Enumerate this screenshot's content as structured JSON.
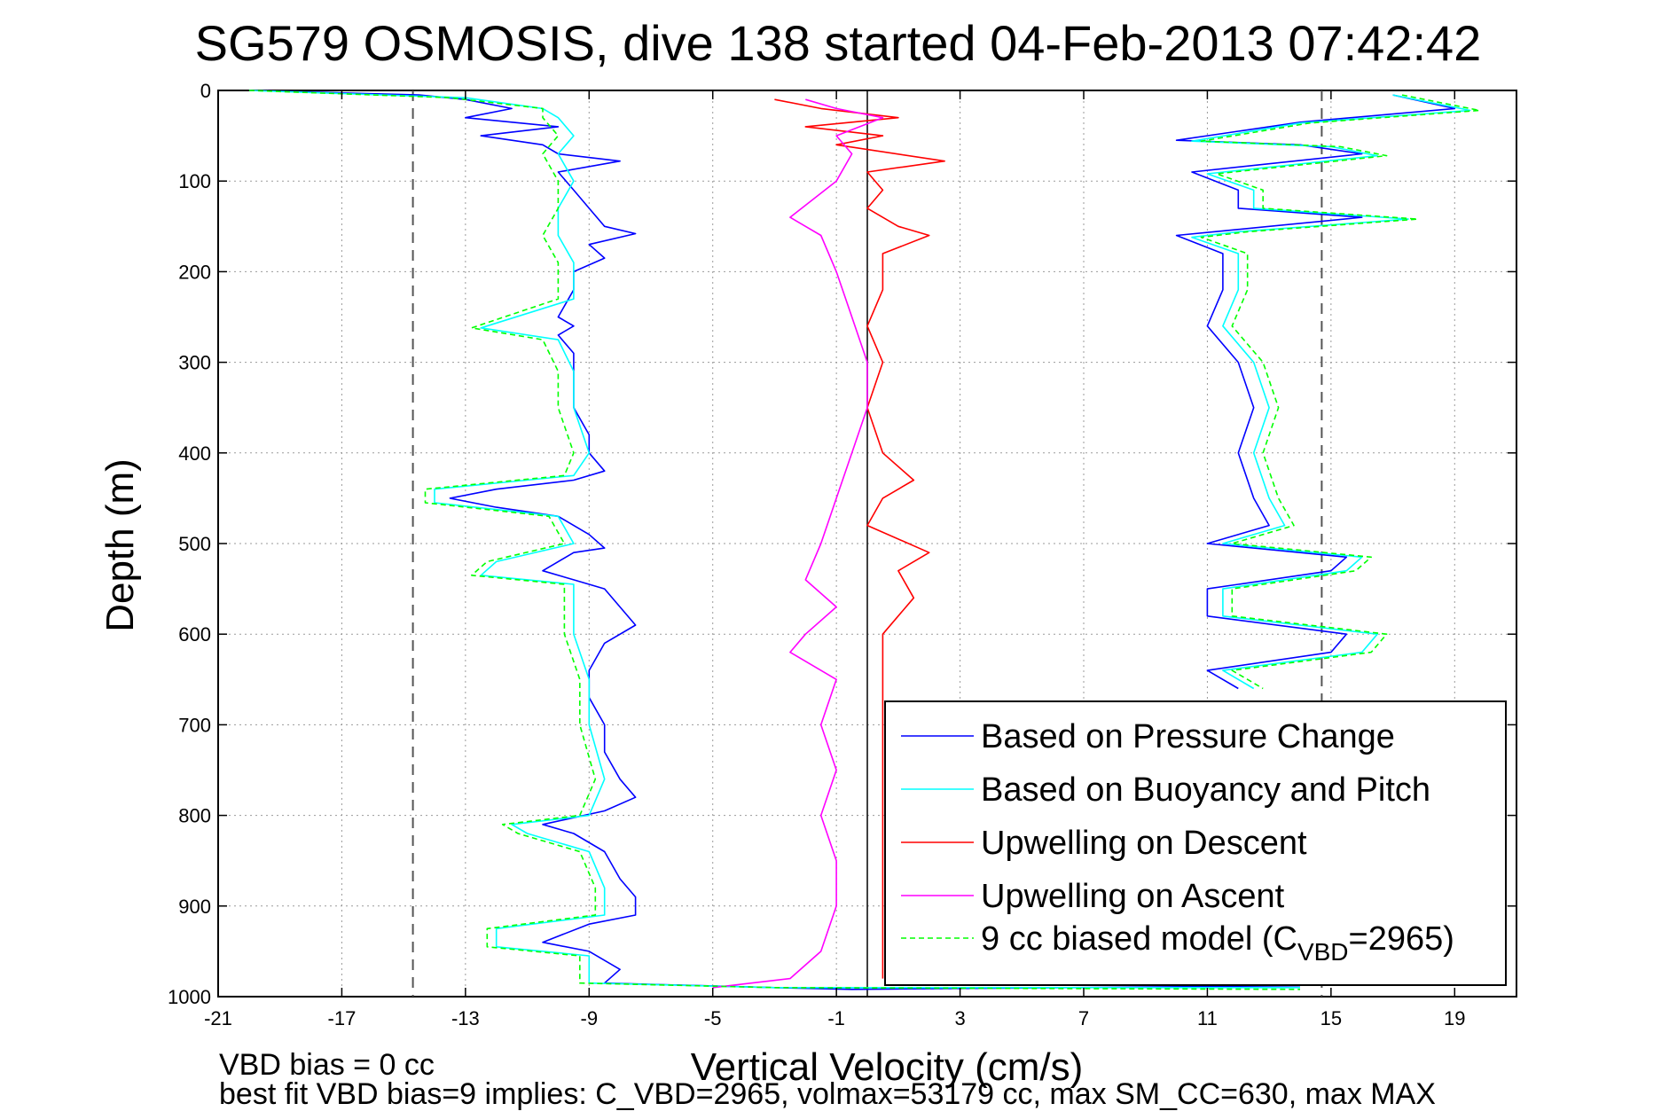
{
  "chart_data": {
    "type": "line",
    "title": "SG579 OSMOSIS, dive 138 started 04-Feb-2013 07:42:42",
    "xlabel": "Vertical Velocity (cm/s)",
    "ylabel": "Depth (m)",
    "xlim": [
      -21,
      21
    ],
    "ylim": [
      1000,
      0
    ],
    "y_reversed": true,
    "xticks": [
      -21,
      -17,
      -13,
      -9,
      -5,
      -1,
      3,
      7,
      11,
      15,
      19
    ],
    "yticks": [
      0,
      100,
      200,
      300,
      400,
      500,
      600,
      700,
      800,
      900,
      1000
    ],
    "grid": true,
    "legend_position": "bottom-right",
    "reference_lines": {
      "solid_vertical_x": 0,
      "dashed_vertical_x": [
        -14.7,
        14.7
      ]
    },
    "series": [
      {
        "name": "Based on Pressure Change",
        "color": "#0000ff",
        "style": "solid",
        "points": [
          [
            -20,
            0
          ],
          [
            -14.5,
            5
          ],
          [
            -13,
            10
          ],
          [
            -11.5,
            20
          ],
          [
            -13,
            30
          ],
          [
            -10,
            40
          ],
          [
            -12.5,
            50
          ],
          [
            -10.5,
            60
          ],
          [
            -10,
            70
          ],
          [
            -8,
            78
          ],
          [
            -10,
            90
          ],
          [
            -9.5,
            110
          ],
          [
            -9,
            130
          ],
          [
            -8.5,
            150
          ],
          [
            -7.5,
            158
          ],
          [
            -9,
            170
          ],
          [
            -8.5,
            185
          ],
          [
            -9.5,
            200
          ],
          [
            -9.5,
            220
          ],
          [
            -10,
            250
          ],
          [
            -9.5,
            260
          ],
          [
            -10,
            270
          ],
          [
            -9.5,
            290
          ],
          [
            -9.5,
            320
          ],
          [
            -9.5,
            350
          ],
          [
            -9,
            380
          ],
          [
            -9,
            400
          ],
          [
            -8.5,
            420
          ],
          [
            -9.5,
            430
          ],
          [
            -12,
            440
          ],
          [
            -13.5,
            450
          ],
          [
            -12,
            460
          ],
          [
            -10,
            470
          ],
          [
            -9,
            490
          ],
          [
            -8.5,
            505
          ],
          [
            -9.5,
            510
          ],
          [
            -10.5,
            530
          ],
          [
            -9.5,
            540
          ],
          [
            -8.5,
            550
          ],
          [
            -8,
            570
          ],
          [
            -7.5,
            590
          ],
          [
            -8.5,
            610
          ],
          [
            -9,
            640
          ],
          [
            -9,
            670
          ],
          [
            -8.5,
            700
          ],
          [
            -8.5,
            730
          ],
          [
            -8,
            760
          ],
          [
            -7.5,
            780
          ],
          [
            -8.5,
            795
          ],
          [
            -10.5,
            810
          ],
          [
            -9.5,
            820
          ],
          [
            -8.5,
            840
          ],
          [
            -8,
            870
          ],
          [
            -7.5,
            890
          ],
          [
            -7.5,
            910
          ],
          [
            -9,
            920
          ],
          [
            -10.5,
            940
          ],
          [
            -9,
            950
          ],
          [
            -8,
            970
          ],
          [
            -8.5,
            985
          ],
          [
            -3,
            990
          ],
          [
            -0.5,
            992
          ],
          [
            14,
            988
          ]
        ]
      },
      {
        "name": "Based on Buoyancy and Pitch",
        "color": "#00ffff",
        "style": "solid",
        "points": [
          [
            -20,
            0
          ],
          [
            -13,
            8
          ],
          [
            -10.5,
            20
          ],
          [
            -10,
            30
          ],
          [
            -9.5,
            50
          ],
          [
            -10,
            70
          ],
          [
            -9.5,
            100
          ],
          [
            -10,
            130
          ],
          [
            -10,
            160
          ],
          [
            -9.5,
            190
          ],
          [
            -9.5,
            230
          ],
          [
            -12.5,
            262
          ],
          [
            -10,
            275
          ],
          [
            -9.5,
            310
          ],
          [
            -9.5,
            350
          ],
          [
            -9,
            400
          ],
          [
            -9.5,
            425
          ],
          [
            -14,
            440
          ],
          [
            -14,
            455
          ],
          [
            -10,
            470
          ],
          [
            -9.5,
            500
          ],
          [
            -12,
            520
          ],
          [
            -12.5,
            535
          ],
          [
            -9.5,
            545
          ],
          [
            -9.5,
            600
          ],
          [
            -9,
            650
          ],
          [
            -9,
            700
          ],
          [
            -8.5,
            760
          ],
          [
            -9,
            800
          ],
          [
            -11.5,
            810
          ],
          [
            -11,
            820
          ],
          [
            -9,
            840
          ],
          [
            -8.5,
            880
          ],
          [
            -8.5,
            910
          ],
          [
            -12,
            925
          ],
          [
            -12,
            945
          ],
          [
            -9,
            955
          ],
          [
            -9,
            985
          ],
          [
            -3,
            990
          ],
          [
            14,
            990
          ]
        ]
      },
      {
        "name": "Upwelling on Descent",
        "color": "#ff0000",
        "style": "solid",
        "points": [
          [
            -3,
            10
          ],
          [
            -1.5,
            20
          ],
          [
            1,
            30
          ],
          [
            -2,
            40
          ],
          [
            0.5,
            50
          ],
          [
            -1,
            60
          ],
          [
            2.5,
            78
          ],
          [
            0,
            90
          ],
          [
            0.5,
            110
          ],
          [
            0,
            130
          ],
          [
            1,
            150
          ],
          [
            2,
            160
          ],
          [
            0.5,
            180
          ],
          [
            0.5,
            220
          ],
          [
            0,
            260
          ],
          [
            0.5,
            300
          ],
          [
            0,
            350
          ],
          [
            0.5,
            400
          ],
          [
            1.5,
            430
          ],
          [
            0.5,
            450
          ],
          [
            0,
            480
          ],
          [
            2,
            510
          ],
          [
            1,
            530
          ],
          [
            1.5,
            560
          ],
          [
            0.5,
            600
          ],
          [
            0.5,
            650
          ],
          [
            0.5,
            700
          ],
          [
            0.5,
            750
          ],
          [
            0.5,
            800
          ],
          [
            0.5,
            850
          ],
          [
            0.5,
            900
          ],
          [
            0.5,
            950
          ],
          [
            0.5,
            980
          ]
        ]
      },
      {
        "name": "Upwelling on Ascent",
        "color": "#ff00ff",
        "style": "solid",
        "points": [
          [
            -2,
            10
          ],
          [
            -1,
            20
          ],
          [
            0.5,
            30
          ],
          [
            -1,
            50
          ],
          [
            -0.5,
            70
          ],
          [
            -1,
            100
          ],
          [
            -2.5,
            140
          ],
          [
            -1.5,
            160
          ],
          [
            -1,
            200
          ],
          [
            -0.5,
            250
          ],
          [
            0,
            300
          ],
          [
            0,
            350
          ],
          [
            -0.5,
            400
          ],
          [
            -1,
            450
          ],
          [
            -1.5,
            500
          ],
          [
            -2,
            540
          ],
          [
            -1,
            570
          ],
          [
            -2,
            600
          ],
          [
            -2.5,
            620
          ],
          [
            -1,
            650
          ],
          [
            -1.5,
            700
          ],
          [
            -1,
            750
          ],
          [
            -1.5,
            800
          ],
          [
            -1,
            850
          ],
          [
            -1,
            900
          ],
          [
            -1.5,
            950
          ],
          [
            -2.5,
            980
          ],
          [
            -5,
            990
          ]
        ]
      },
      {
        "name": "9 cc biased model (C",
        "legend_subscript": "VBD",
        "legend_suffix": "=2965)",
        "color": "#00ff00",
        "style": "dashed",
        "points": [
          [
            -20,
            0
          ],
          [
            -13.5,
            8
          ],
          [
            -10.5,
            20
          ],
          [
            -10.5,
            30
          ],
          [
            -10,
            50
          ],
          [
            -10.5,
            70
          ],
          [
            -10,
            100
          ],
          [
            -10,
            130
          ],
          [
            -10.5,
            160
          ],
          [
            -10,
            190
          ],
          [
            -10,
            230
          ],
          [
            -12.8,
            262
          ],
          [
            -10.5,
            275
          ],
          [
            -10,
            310
          ],
          [
            -10,
            350
          ],
          [
            -9.5,
            400
          ],
          [
            -9.8,
            425
          ],
          [
            -14.3,
            440
          ],
          [
            -14.3,
            455
          ],
          [
            -10.3,
            470
          ],
          [
            -9.8,
            500
          ],
          [
            -12.3,
            520
          ],
          [
            -12.8,
            535
          ],
          [
            -9.8,
            545
          ],
          [
            -9.8,
            600
          ],
          [
            -9.3,
            650
          ],
          [
            -9.3,
            700
          ],
          [
            -8.8,
            760
          ],
          [
            -9.3,
            800
          ],
          [
            -11.8,
            810
          ],
          [
            -11.3,
            820
          ],
          [
            -9.3,
            840
          ],
          [
            -8.8,
            880
          ],
          [
            -8.8,
            910
          ],
          [
            -12.3,
            925
          ],
          [
            -12.3,
            945
          ],
          [
            -9.3,
            955
          ],
          [
            -9.3,
            985
          ],
          [
            -3,
            990
          ],
          [
            14,
            992
          ]
        ]
      }
    ],
    "right_profile_series": [
      {
        "color": "#0000ff",
        "points": [
          [
            17,
            5
          ],
          [
            19,
            20
          ],
          [
            14,
            35
          ],
          [
            10,
            55
          ],
          [
            14,
            60
          ],
          [
            16,
            70
          ],
          [
            10.5,
            90
          ],
          [
            12,
            110
          ],
          [
            12,
            130
          ],
          [
            16,
            140
          ],
          [
            11.5,
            155
          ],
          [
            10,
            160
          ],
          [
            11.5,
            180
          ],
          [
            11.5,
            220
          ],
          [
            11,
            260
          ],
          [
            12,
            300
          ],
          [
            12.5,
            350
          ],
          [
            12,
            400
          ],
          [
            12.5,
            450
          ],
          [
            13,
            480
          ],
          [
            11,
            500
          ],
          [
            15.5,
            515
          ],
          [
            15,
            530
          ],
          [
            11,
            550
          ],
          [
            11,
            580
          ],
          [
            15.5,
            600
          ],
          [
            15,
            620
          ],
          [
            11,
            640
          ],
          [
            12,
            660
          ]
        ]
      },
      {
        "color": "#00ffff",
        "points": [
          [
            17,
            5
          ],
          [
            19.5,
            22
          ],
          [
            14,
            36
          ],
          [
            10.5,
            56
          ],
          [
            15,
            62
          ],
          [
            16.5,
            72
          ],
          [
            11,
            92
          ],
          [
            12.5,
            110
          ],
          [
            12.5,
            130
          ],
          [
            17.5,
            142
          ],
          [
            12,
            156
          ],
          [
            10.5,
            162
          ],
          [
            12,
            180
          ],
          [
            12,
            220
          ],
          [
            11.5,
            260
          ],
          [
            12.5,
            300
          ],
          [
            13,
            350
          ],
          [
            12.5,
            400
          ],
          [
            13,
            450
          ],
          [
            13.5,
            480
          ],
          [
            11.5,
            500
          ],
          [
            16,
            515
          ],
          [
            15.5,
            530
          ],
          [
            11.5,
            550
          ],
          [
            11.5,
            580
          ],
          [
            16.5,
            600
          ],
          [
            16,
            620
          ],
          [
            11.5,
            640
          ],
          [
            12.5,
            660
          ]
        ]
      },
      {
        "color": "#00ff00",
        "style": "dashed",
        "points": [
          [
            17.3,
            5
          ],
          [
            19.8,
            22
          ],
          [
            14.3,
            36
          ],
          [
            10.8,
            56
          ],
          [
            15.3,
            62
          ],
          [
            16.8,
            72
          ],
          [
            11.3,
            92
          ],
          [
            12.8,
            110
          ],
          [
            12.8,
            130
          ],
          [
            17.8,
            142
          ],
          [
            12.3,
            156
          ],
          [
            10.8,
            162
          ],
          [
            12.3,
            180
          ],
          [
            12.3,
            220
          ],
          [
            11.8,
            260
          ],
          [
            12.8,
            300
          ],
          [
            13.3,
            350
          ],
          [
            12.8,
            400
          ],
          [
            13.3,
            450
          ],
          [
            13.8,
            480
          ],
          [
            11.8,
            500
          ],
          [
            16.3,
            515
          ],
          [
            15.8,
            530
          ],
          [
            11.8,
            550
          ],
          [
            11.8,
            580
          ],
          [
            16.8,
            600
          ],
          [
            16.3,
            620
          ],
          [
            11.8,
            640
          ],
          [
            12.8,
            660
          ]
        ]
      }
    ],
    "footer_lines": [
      "VBD bias = 0 cc",
      "best fit VBD bias=9 implies: C_VBD=2965, volmax=53179 cc, max SM_CC=630, max MAX"
    ]
  }
}
